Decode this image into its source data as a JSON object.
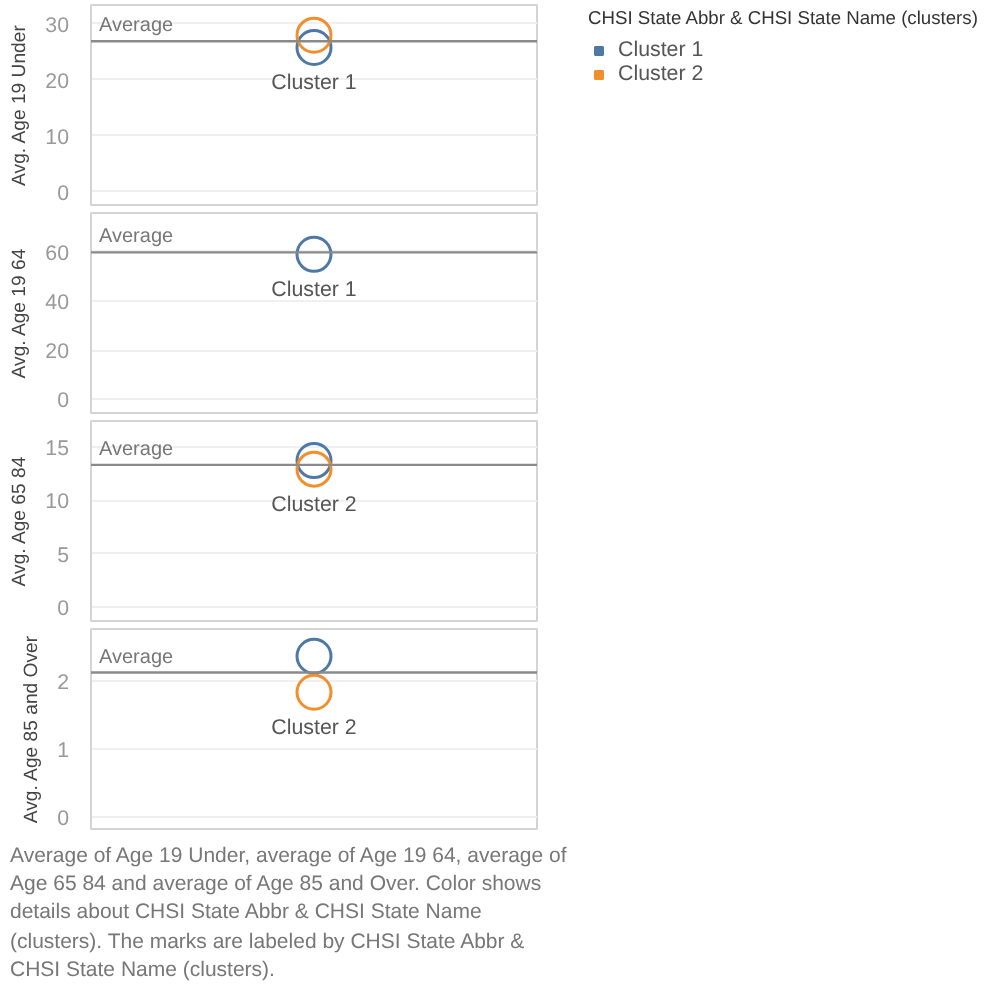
{
  "chart_data": [
    {
      "type": "scatter",
      "legend_title": "CHSI State Abbr & CHSI State Name (clusters)",
      "legend": "right",
      "ylabel": "Avg. Age 19 Under",
      "categories": [
        null
      ],
      "series": [
        {
          "name": "Cluster 1",
          "color": "#4e79a7",
          "values": [
            25.8
          ]
        },
        {
          "name": "Cluster 2",
          "color": "#f28e2b",
          "values": [
            28.0
          ]
        }
      ],
      "ylim": [
        -2.4,
        33.4
      ],
      "yticks": [
        0,
        10,
        20,
        30
      ],
      "grid": "y",
      "marker": "circle",
      "tick_labels": "y",
      "ref_lines": [
        {
          "axis": "y",
          "value": 26.9,
          "label": "Average"
        }
      ],
      "annotations": [
        {
          "text": "Cluster 1",
          "y": 25.8
        }
      ]
    },
    {
      "type": "scatter",
      "ylabel": "Avg. Age 19 64",
      "categories": [
        null
      ],
      "series": [
        {
          "color": "#4e79a7",
          "values": [
            59
          ]
        },
        {
          "color": "#f28e2b",
          "values": [
            null
          ]
        }
      ],
      "ylim": [
        -5.5,
        75.8
      ],
      "yticks": [
        0,
        20,
        40,
        60
      ],
      "grid": "y",
      "marker": "circle",
      "tick_labels": "y",
      "ref_lines": [
        {
          "axis": "y",
          "value": 59.8,
          "label": "Average"
        }
      ],
      "annotations": [
        {
          "text": "Cluster 1",
          "y": 59
        }
      ]
    },
    {
      "type": "scatter",
      "ylabel": "Avg. Age 65 84",
      "categories": [
        null
      ],
      "series": [
        {
          "color": "#4e79a7",
          "values": [
            13.7
          ]
        },
        {
          "color": "#f28e2b",
          "values": [
            12.9
          ]
        }
      ],
      "ylim": [
        -1.3,
        17.4
      ],
      "yticks": [
        0,
        5,
        10,
        15
      ],
      "grid": "y",
      "marker": "circle",
      "tick_labels": "y",
      "ref_lines": [
        {
          "axis": "y",
          "value": 13.3,
          "label": "Average"
        }
      ],
      "annotations": [
        {
          "text": "Cluster 2",
          "y": 12.9
        }
      ]
    },
    {
      "type": "scatter",
      "ylabel": "Avg. Age 85 and Over",
      "categories": [
        null
      ],
      "series": [
        {
          "color": "#4e79a7",
          "values": [
            2.36
          ]
        },
        {
          "color": "#f28e2b",
          "values": [
            1.83
          ]
        }
      ],
      "ylim": [
        -0.18,
        2.76
      ],
      "yticks": [
        0,
        1,
        2
      ],
      "grid": "y",
      "marker": "circle",
      "tick_labels": "y",
      "ref_lines": [
        {
          "axis": "y",
          "value": 2.12,
          "label": "Average"
        }
      ],
      "annotations": [
        {
          "text": "Cluster 2",
          "y": 1.83
        },
        "Average of Age 19 Under, average of Age 19 64, average of Age 65 84 and average of Age 85 and Over. Color shows details about CHSI State Abbr & CHSI State Name (clusters).  The marks are labeled by CHSI State Abbr & CHSI State Name (clusters)."
      ]
    }
  ]
}
